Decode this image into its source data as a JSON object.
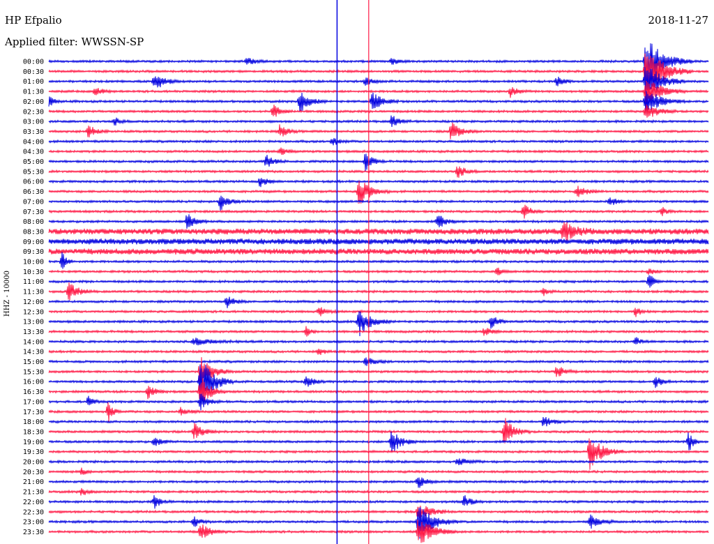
{
  "header": {
    "station": "HP Efpalio",
    "filter_label": "Applied filter: WWSSN-SP",
    "date": "2018-11-27"
  },
  "chart_data": {
    "type": "line",
    "title": "HP Efpalio",
    "subtitle": "Applied filter: WWSSN-SP",
    "date": "2018-11-27",
    "ylabel": "HHZ - 10000",
    "xlabel": "",
    "trace_interval_minutes": 30,
    "trace_colors": [
      "#0000e0",
      "#ff1744"
    ],
    "grid": false,
    "legend": "none",
    "row_labels": [
      "00:00",
      "00:30",
      "01:00",
      "01:30",
      "02:00",
      "02:30",
      "03:00",
      "03:30",
      "04:00",
      "04:30",
      "05:00",
      "05:30",
      "06:00",
      "06:30",
      "07:00",
      "07:30",
      "08:00",
      "08:30",
      "09:00",
      "09:30",
      "10:00",
      "10:30",
      "11:00",
      "11:30",
      "12:00",
      "12:30",
      "13:00",
      "13:30",
      "14:00",
      "14:30",
      "15:00",
      "15:30",
      "16:00",
      "16:30",
      "17:00",
      "17:30",
      "18:00",
      "18:30",
      "19:00",
      "19:30",
      "20:00",
      "20:30",
      "21:00",
      "21:30",
      "22:00",
      "22:30",
      "23:00",
      "23:30"
    ],
    "events": [
      {
        "row": 0,
        "x": 0.3,
        "amp": 6,
        "len": 0.03
      },
      {
        "row": 0,
        "x": 0.52,
        "amp": 5,
        "len": 0.03
      },
      {
        "row": 0,
        "x": 0.905,
        "amp": 38,
        "len": 0.07
      },
      {
        "row": 1,
        "x": 0.905,
        "amp": 40,
        "len": 0.07
      },
      {
        "row": 2,
        "x": 0.905,
        "amp": 30,
        "len": 0.06
      },
      {
        "row": 2,
        "x": 0.16,
        "amp": 14,
        "len": 0.04
      },
      {
        "row": 2,
        "x": 0.48,
        "amp": 6,
        "len": 0.03
      },
      {
        "row": 2,
        "x": 0.77,
        "amp": 7,
        "len": 0.03
      },
      {
        "row": 3,
        "x": 0.905,
        "amp": 22,
        "len": 0.06
      },
      {
        "row": 3,
        "x": 0.07,
        "amp": 6,
        "len": 0.03
      },
      {
        "row": 3,
        "x": 0.7,
        "amp": 8,
        "len": 0.03
      },
      {
        "row": 4,
        "x": 0.905,
        "amp": 20,
        "len": 0.06
      },
      {
        "row": 4,
        "x": 0.38,
        "amp": 18,
        "len": 0.04
      },
      {
        "row": 4,
        "x": 0.49,
        "amp": 16,
        "len": 0.04
      },
      {
        "row": 4,
        "x": 0.0,
        "amp": 8,
        "len": 0.02
      },
      {
        "row": 5,
        "x": 0.905,
        "amp": 12,
        "len": 0.05
      },
      {
        "row": 5,
        "x": 0.34,
        "amp": 10,
        "len": 0.03
      },
      {
        "row": 6,
        "x": 0.52,
        "amp": 10,
        "len": 0.03
      },
      {
        "row": 6,
        "x": 0.1,
        "amp": 6,
        "len": 0.02
      },
      {
        "row": 7,
        "x": 0.06,
        "amp": 10,
        "len": 0.03
      },
      {
        "row": 7,
        "x": 0.35,
        "amp": 10,
        "len": 0.03
      },
      {
        "row": 7,
        "x": 0.61,
        "amp": 14,
        "len": 0.04
      },
      {
        "row": 8,
        "x": 0.43,
        "amp": 6,
        "len": 0.03
      },
      {
        "row": 9,
        "x": 0.35,
        "amp": 6,
        "len": 0.03
      },
      {
        "row": 10,
        "x": 0.33,
        "amp": 10,
        "len": 0.03
      },
      {
        "row": 10,
        "x": 0.48,
        "amp": 14,
        "len": 0.03
      },
      {
        "row": 11,
        "x": 0.62,
        "amp": 10,
        "len": 0.03
      },
      {
        "row": 12,
        "x": 0.32,
        "amp": 8,
        "len": 0.03
      },
      {
        "row": 13,
        "x": 0.47,
        "amp": 20,
        "len": 0.05
      },
      {
        "row": 13,
        "x": 0.8,
        "amp": 9,
        "len": 0.04
      },
      {
        "row": 14,
        "x": 0.26,
        "amp": 14,
        "len": 0.03
      },
      {
        "row": 14,
        "x": 0.85,
        "amp": 7,
        "len": 0.03
      },
      {
        "row": 15,
        "x": 0.72,
        "amp": 11,
        "len": 0.03
      },
      {
        "row": 15,
        "x": 0.93,
        "amp": 6,
        "len": 0.02
      },
      {
        "row": 16,
        "x": 0.21,
        "amp": 14,
        "len": 0.03
      },
      {
        "row": 16,
        "x": 0.59,
        "amp": 12,
        "len": 0.03
      },
      {
        "row": 17,
        "x": 0.78,
        "amp": 14,
        "len": 0.05
      },
      {
        "row": 20,
        "x": 0.02,
        "amp": 14,
        "len": 0.02
      },
      {
        "row": 21,
        "x": 0.68,
        "amp": 6,
        "len": 0.02
      },
      {
        "row": 21,
        "x": 0.91,
        "amp": 6,
        "len": 0.02
      },
      {
        "row": 22,
        "x": 0.91,
        "amp": 12,
        "len": 0.02
      },
      {
        "row": 23,
        "x": 0.03,
        "amp": 14,
        "len": 0.04
      },
      {
        "row": 23,
        "x": 0.75,
        "amp": 6,
        "len": 0.02
      },
      {
        "row": 24,
        "x": 0.27,
        "amp": 10,
        "len": 0.03
      },
      {
        "row": 25,
        "x": 0.41,
        "amp": 8,
        "len": 0.03
      },
      {
        "row": 25,
        "x": 0.89,
        "amp": 8,
        "len": 0.02
      },
      {
        "row": 26,
        "x": 0.47,
        "amp": 22,
        "len": 0.05
      },
      {
        "row": 26,
        "x": 0.67,
        "amp": 10,
        "len": 0.03
      },
      {
        "row": 27,
        "x": 0.39,
        "amp": 8,
        "len": 0.02
      },
      {
        "row": 27,
        "x": 0.66,
        "amp": 6,
        "len": 0.03
      },
      {
        "row": 28,
        "x": 0.22,
        "amp": 5,
        "len": 0.08
      },
      {
        "row": 28,
        "x": 0.89,
        "amp": 7,
        "len": 0.02
      },
      {
        "row": 29,
        "x": 0.41,
        "amp": 6,
        "len": 0.02
      },
      {
        "row": 30,
        "x": 0.48,
        "amp": 6,
        "len": 0.04
      },
      {
        "row": 31,
        "x": 0.23,
        "amp": 24,
        "len": 0.05
      },
      {
        "row": 31,
        "x": 0.77,
        "amp": 10,
        "len": 0.03
      },
      {
        "row": 32,
        "x": 0.23,
        "amp": 40,
        "len": 0.05
      },
      {
        "row": 32,
        "x": 0.39,
        "amp": 10,
        "len": 0.03
      },
      {
        "row": 32,
        "x": 0.92,
        "amp": 9,
        "len": 0.03
      },
      {
        "row": 33,
        "x": 0.15,
        "amp": 10,
        "len": 0.03
      },
      {
        "row": 33,
        "x": 0.23,
        "amp": 26,
        "len": 0.04
      },
      {
        "row": 34,
        "x": 0.06,
        "amp": 8,
        "len": 0.02
      },
      {
        "row": 34,
        "x": 0.23,
        "amp": 12,
        "len": 0.03
      },
      {
        "row": 35,
        "x": 0.09,
        "amp": 16,
        "len": 0.02
      },
      {
        "row": 35,
        "x": 0.2,
        "amp": 6,
        "len": 0.03
      },
      {
        "row": 36,
        "x": 0.75,
        "amp": 8,
        "len": 0.04
      },
      {
        "row": 37,
        "x": 0.22,
        "amp": 12,
        "len": 0.04
      },
      {
        "row": 37,
        "x": 0.69,
        "amp": 22,
        "len": 0.04
      },
      {
        "row": 38,
        "x": 0.52,
        "amp": 18,
        "len": 0.04
      },
      {
        "row": 38,
        "x": 0.16,
        "amp": 7,
        "len": 0.03
      },
      {
        "row": 38,
        "x": 0.97,
        "amp": 16,
        "len": 0.02
      },
      {
        "row": 39,
        "x": 0.82,
        "amp": 28,
        "len": 0.05
      },
      {
        "row": 40,
        "x": 0.62,
        "amp": 6,
        "len": 0.04
      },
      {
        "row": 41,
        "x": 0.05,
        "amp": 5,
        "len": 0.02
      },
      {
        "row": 42,
        "x": 0.56,
        "amp": 10,
        "len": 0.03
      },
      {
        "row": 43,
        "x": 0.05,
        "amp": 6,
        "len": 0.03
      },
      {
        "row": 44,
        "x": 0.16,
        "amp": 9,
        "len": 0.03
      },
      {
        "row": 44,
        "x": 0.63,
        "amp": 10,
        "len": 0.03
      },
      {
        "row": 45,
        "x": 0.56,
        "amp": 14,
        "len": 0.05
      },
      {
        "row": 46,
        "x": 0.56,
        "amp": 28,
        "len": 0.06
      },
      {
        "row": 46,
        "x": 0.22,
        "amp": 8,
        "len": 0.03
      },
      {
        "row": 46,
        "x": 0.82,
        "amp": 10,
        "len": 0.04
      },
      {
        "row": 47,
        "x": 0.56,
        "amp": 22,
        "len": 0.06
      },
      {
        "row": 47,
        "x": 0.23,
        "amp": 14,
        "len": 0.04
      }
    ],
    "spikes": [
      {
        "x": 0.437,
        "color": "#0000e0"
      },
      {
        "x": 0.485,
        "color": "#ff1744"
      }
    ]
  }
}
